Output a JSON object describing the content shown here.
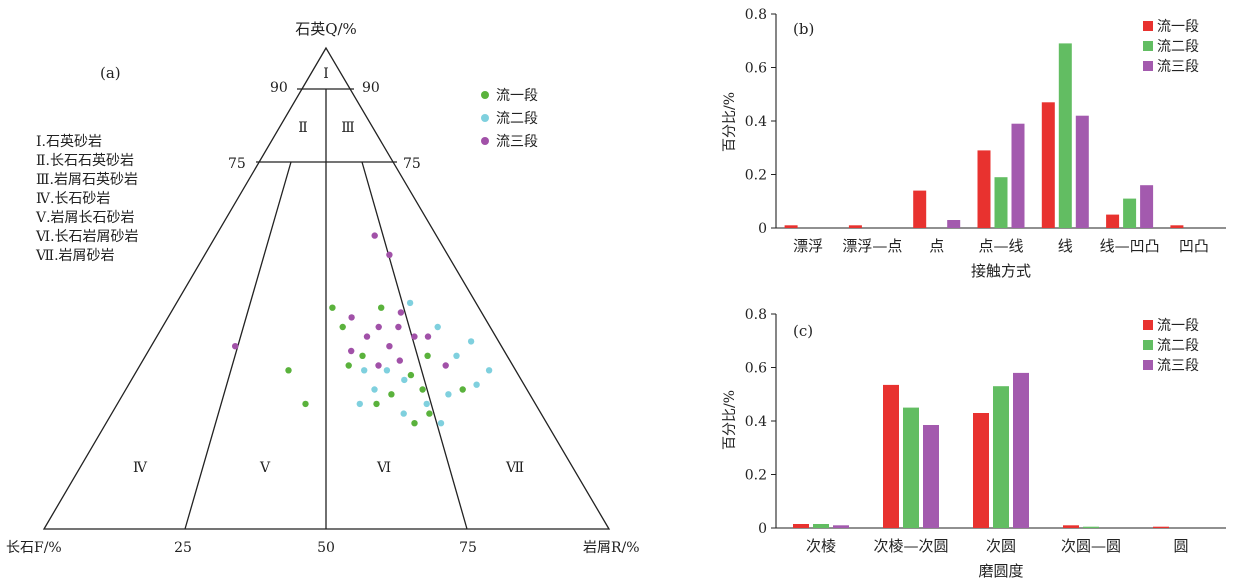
{
  "chart_data": [
    {
      "id": "a",
      "type": "ternary-scatter",
      "panel_label": "(a)",
      "apex_label": "石英Q/%",
      "left_label": "长石F/%",
      "right_label": "岩屑R/%",
      "q_ticks": [
        "90",
        "90",
        "75",
        "75"
      ],
      "base_ticks": [
        "25",
        "50",
        "75"
      ],
      "region_labels": [
        "Ⅰ",
        "Ⅱ",
        "Ⅲ",
        "Ⅳ",
        "Ⅴ",
        "Ⅵ",
        "Ⅶ"
      ],
      "classification": [
        "Ⅰ.石英砂岩",
        "Ⅱ.长石石英砂岩",
        "Ⅲ.岩屑石英砂岩",
        "Ⅳ.长石砂岩",
        "Ⅴ.岩屑长石砂岩",
        "Ⅵ.长石岩屑砂岩",
        "Ⅶ.岩屑砂岩"
      ],
      "series": [
        {
          "name": "流一段",
          "color": "#5ab23c",
          "points": [
            [
              0.72,
              0.32
            ],
            [
              0.45,
              0.26
            ],
            [
              0.56,
              0.34
            ],
            [
              0.52,
              0.46
            ],
            [
              0.6,
              0.36
            ],
            [
              0.7,
              0.22
            ],
            [
              0.66,
              0.28
            ],
            [
              0.74,
              0.29
            ],
            [
              0.78,
              0.36
            ],
            [
              0.55,
              0.42
            ],
            [
              0.68,
              0.46
            ],
            [
              0.62,
              0.26
            ],
            [
              0.84,
              0.29
            ],
            [
              0.74,
              0.24
            ],
            [
              0.4,
              0.33
            ]
          ]
        },
        {
          "name": "流二段",
          "color": "#7fd0de",
          "points": [
            [
              0.62,
              0.29
            ],
            [
              0.7,
              0.31
            ],
            [
              0.8,
              0.28
            ],
            [
              0.74,
              0.26
            ],
            [
              0.66,
              0.33
            ],
            [
              0.86,
              0.36
            ],
            [
              0.93,
              0.33
            ],
            [
              0.88,
              0.3
            ],
            [
              0.58,
              0.26
            ],
            [
              0.92,
              0.39
            ],
            [
              0.68,
              0.24
            ],
            [
              0.76,
              0.22
            ],
            [
              0.6,
              0.33
            ],
            [
              0.84,
              0.42
            ],
            [
              0.78,
              0.47
            ]
          ]
        },
        {
          "name": "流三段",
          "color": "#a151a8",
          "points": [
            [
              0.62,
              0.4
            ],
            [
              0.68,
              0.38
            ],
            [
              0.72,
              0.42
            ],
            [
              0.58,
              0.44
            ],
            [
              0.64,
              0.34
            ],
            [
              0.76,
              0.4
            ],
            [
              0.82,
              0.34
            ],
            [
              0.7,
              0.35
            ],
            [
              0.66,
              0.42
            ],
            [
              0.74,
              0.45
            ],
            [
              0.8,
              0.4
            ],
            [
              0.57,
              0.37
            ],
            [
              0.76,
              0.57
            ],
            [
              0.72,
              0.61
            ],
            [
              0.24,
              0.38
            ]
          ]
        }
      ]
    },
    {
      "id": "b",
      "type": "bar",
      "panel_label": "(b)",
      "xlabel": "接触方式",
      "ylabel": "百分比/%",
      "ylim": [
        0,
        0.8
      ],
      "yticks": [
        "0",
        "0.2",
        "0.4",
        "0.6",
        "0.8"
      ],
      "categories": [
        "漂浮",
        "漂浮—点",
        "点",
        "点—线",
        "线",
        "线—凹凸",
        "凹凸"
      ],
      "series": [
        {
          "name": "流一段",
          "color": "#e8322f",
          "values": [
            0.01,
            0.01,
            0.14,
            0.29,
            0.47,
            0.05,
            0.01
          ]
        },
        {
          "name": "流二段",
          "color": "#62bd62",
          "values": [
            0,
            0,
            0,
            0.19,
            0.69,
            0.11,
            0
          ]
        },
        {
          "name": "流三段",
          "color": "#a35aae",
          "values": [
            0,
            0,
            0.03,
            0.39,
            0.42,
            0.16,
            0
          ]
        }
      ]
    },
    {
      "id": "c",
      "type": "bar",
      "panel_label": "(c)",
      "xlabel": "磨圆度",
      "ylabel": "百分比/%",
      "ylim": [
        0,
        0.8
      ],
      "yticks": [
        "0",
        "0.2",
        "0.4",
        "0.6",
        "0.8"
      ],
      "categories": [
        "次棱",
        "次棱—次圆",
        "次圆",
        "次圆—圆",
        "圆"
      ],
      "series": [
        {
          "name": "流一段",
          "color": "#e8322f",
          "values": [
            0.015,
            0.535,
            0.43,
            0.01,
            0.005
          ]
        },
        {
          "name": "流二段",
          "color": "#62bd62",
          "values": [
            0.015,
            0.45,
            0.53,
            0.005,
            0
          ]
        },
        {
          "name": "流三段",
          "color": "#a35aae",
          "values": [
            0.01,
            0.385,
            0.58,
            0,
            0
          ]
        }
      ]
    }
  ]
}
